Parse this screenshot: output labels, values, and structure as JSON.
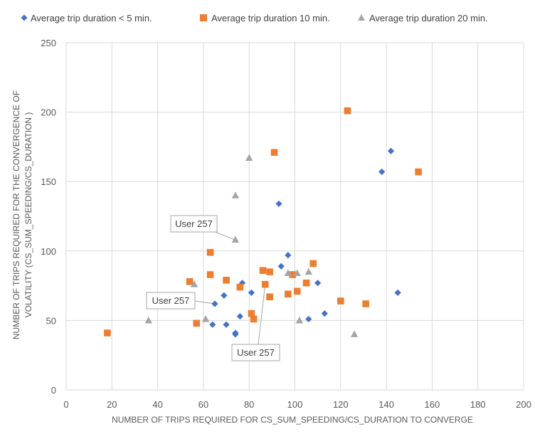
{
  "chart_data": {
    "type": "scatter",
    "title": "",
    "xlabel": "NUMBER OF TRIPS REQUIRED FOR CS_SUM_SPEEDING/CS_DURATION TO CONVERGE",
    "ylabel_lines": [
      "NUMBER OF TRIPS REQUIRED FOR THE CONVERGENCE OF",
      "VOLATILITY (CS_SUM_SPEEDING/CS_DURATION )"
    ],
    "xlim": [
      0,
      200
    ],
    "ylim": [
      0,
      250
    ],
    "x_ticks": [
      0,
      20,
      40,
      60,
      80,
      100,
      120,
      140,
      160,
      180,
      200
    ],
    "y_ticks": [
      0,
      50,
      100,
      150,
      200,
      250
    ],
    "grid": true,
    "legend_position": "top",
    "series": [
      {
        "name": "Average trip duration < 5 min.",
        "color": "#4472C4",
        "marker": "diamond",
        "points": [
          [
            64,
            47
          ],
          [
            65,
            62
          ],
          [
            69,
            68
          ],
          [
            70,
            47
          ],
          [
            74,
            41
          ],
          [
            74,
            40
          ],
          [
            76,
            53
          ],
          [
            77,
            77
          ],
          [
            81,
            70
          ],
          [
            93,
            134
          ],
          [
            94,
            89
          ],
          [
            97,
            97
          ],
          [
            106,
            51
          ],
          [
            110,
            77
          ],
          [
            113,
            55
          ],
          [
            138,
            157
          ],
          [
            142,
            172
          ],
          [
            145,
            70
          ]
        ]
      },
      {
        "name": "Average trip duration 10 min.",
        "color": "#ED7D31",
        "marker": "square",
        "points": [
          [
            18,
            41
          ],
          [
            54,
            78
          ],
          [
            57,
            48
          ],
          [
            63,
            99
          ],
          [
            63,
            83
          ],
          [
            70,
            79
          ],
          [
            76,
            74
          ],
          [
            81,
            55
          ],
          [
            82,
            51
          ],
          [
            86,
            86
          ],
          [
            87,
            76
          ],
          [
            89,
            67
          ],
          [
            89,
            85
          ],
          [
            91,
            171
          ],
          [
            97,
            69
          ],
          [
            99,
            83
          ],
          [
            101,
            71
          ],
          [
            105,
            77
          ],
          [
            108,
            91
          ],
          [
            120,
            64
          ],
          [
            123,
            201
          ],
          [
            131,
            62
          ],
          [
            154,
            157
          ]
        ]
      },
      {
        "name": "Average trip duration 20 min.",
        "color": "#A5A5A5",
        "marker": "triangle",
        "points": [
          [
            36,
            50
          ],
          [
            56,
            76
          ],
          [
            61,
            51
          ],
          [
            74,
            140
          ],
          [
            74,
            108
          ],
          [
            80,
            167
          ],
          [
            97,
            84
          ],
          [
            101,
            84
          ],
          [
            102,
            50
          ],
          [
            106,
            85
          ],
          [
            126,
            40
          ]
        ]
      }
    ],
    "annotations": [
      {
        "text": "User 257",
        "target": [
          74,
          108
        ]
      },
      {
        "text": "User 257",
        "target": [
          65,
          62
        ]
      },
      {
        "text": "User 257",
        "target": [
          87,
          76
        ]
      }
    ]
  }
}
